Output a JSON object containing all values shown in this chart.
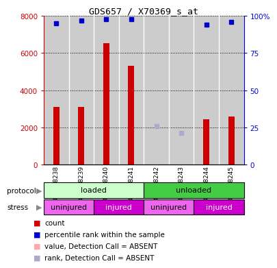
{
  "title": "GDS657 / X70369_s_at",
  "samples": [
    "GSM18238",
    "GSM18239",
    "GSM18240",
    "GSM18241",
    "GSM18242",
    "GSM18243",
    "GSM18244",
    "GSM18245"
  ],
  "count_values": [
    3100,
    3100,
    6550,
    5300,
    0,
    0,
    2450,
    2580
  ],
  "count_absent": [
    false,
    false,
    false,
    false,
    true,
    true,
    false,
    false
  ],
  "percentile_values": [
    95,
    97,
    98,
    98,
    null,
    null,
    94,
    96
  ],
  "percentile_absent": [
    false,
    false,
    false,
    false,
    true,
    true,
    false,
    false
  ],
  "absent_rank_values": [
    null,
    null,
    null,
    null,
    26,
    21,
    null,
    null
  ],
  "ylim_left": [
    0,
    8000
  ],
  "ylim_right": [
    0,
    100
  ],
  "yticks_left": [
    0,
    2000,
    4000,
    6000,
    8000
  ],
  "yticks_right": [
    0,
    25,
    50,
    75,
    100
  ],
  "color_count": "#cc0000",
  "color_percentile": "#0000cc",
  "color_absent_count": "#ffaaaa",
  "color_absent_rank": "#aaaacc",
  "protocol_loaded_color": "#ccffcc",
  "protocol_unloaded_color": "#44cc44",
  "stress_uninjured_color": "#ee66ee",
  "stress_injured_color": "#cc00cc",
  "bar_bg_color": "#cccccc",
  "plot_bg_color": "#ffffff",
  "protocol_labels": [
    [
      "loaded",
      0,
      4
    ],
    [
      "unloaded",
      4,
      8
    ]
  ],
  "stress_labels": [
    [
      "uninjured",
      0,
      2
    ],
    [
      "injured",
      2,
      4
    ],
    [
      "uninjured",
      4,
      6
    ],
    [
      "injured",
      6,
      8
    ]
  ]
}
